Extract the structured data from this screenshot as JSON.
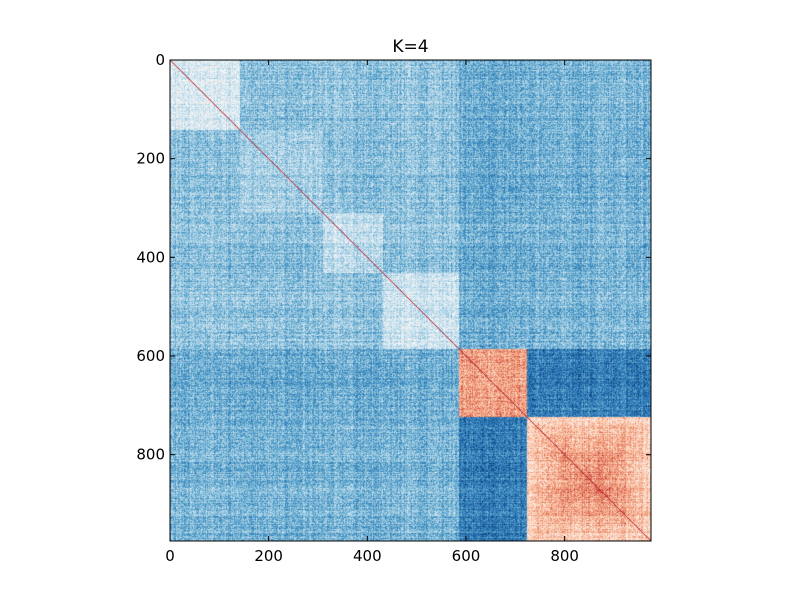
{
  "chart_data": {
    "type": "heatmap",
    "title": "K=4",
    "xlabel": "",
    "ylabel": "",
    "n": 975,
    "xlim": [
      0,
      975
    ],
    "ylim": [
      975,
      0
    ],
    "xticks": [
      0,
      200,
      400,
      600,
      800
    ],
    "yticks": [
      0,
      200,
      400,
      600,
      800
    ],
    "xtick_labels": [
      "0",
      "200",
      "400",
      "600",
      "800"
    ],
    "ytick_labels": [
      "0",
      "200",
      "400",
      "600",
      "800"
    ],
    "colormap": "RdBu_r",
    "colors": {
      "low": "#08306b",
      "mid": "#f7f7f7",
      "high": "#b2182b",
      "diagonal": "#b2182b"
    },
    "clusters": [
      {
        "start": 0,
        "end": 585,
        "within_level": 0.36
      },
      {
        "start": 585,
        "end": 722,
        "within_level": 0.7
      },
      {
        "start": 722,
        "end": 975,
        "within_level": 0.66
      }
    ],
    "sub_blocks": [
      {
        "start": 0,
        "end": 140
      },
      {
        "start": 140,
        "end": 310
      },
      {
        "start": 310,
        "end": 430
      },
      {
        "start": 430,
        "end": 585
      }
    ],
    "between_levels": [
      {
        "a": 0,
        "b": 1,
        "level": 0.25
      },
      {
        "a": 0,
        "b": 2,
        "level": 0.27
      },
      {
        "a": 1,
        "b": 2,
        "level": 0.15
      }
    ],
    "grid": false,
    "legend": "none"
  }
}
